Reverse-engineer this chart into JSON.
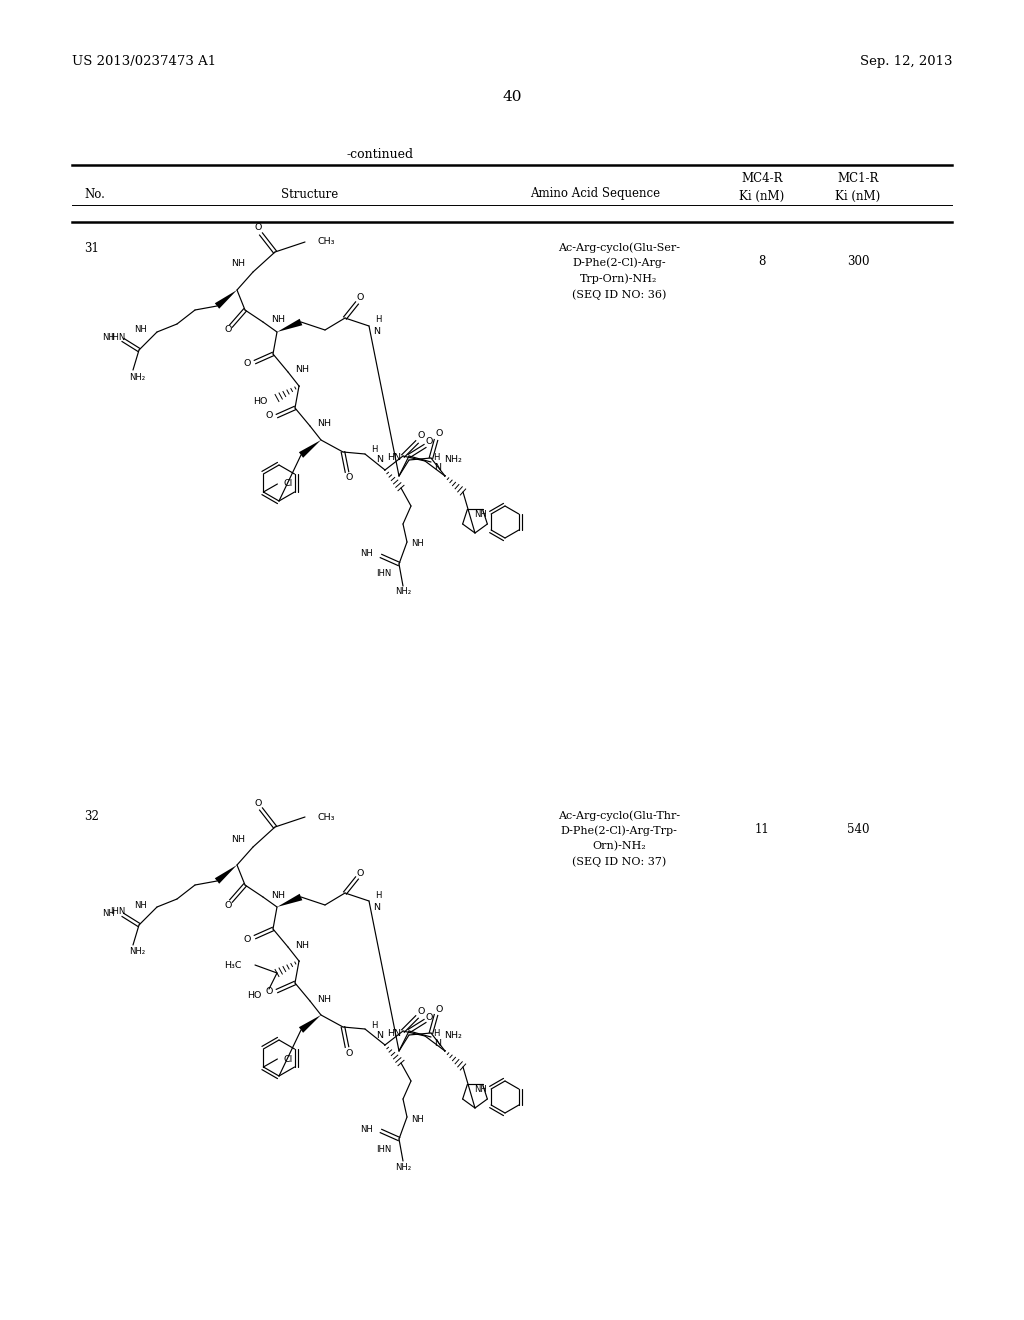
{
  "page_header_left": "US 2013/0237473 A1",
  "page_header_right": "Sep. 12, 2013",
  "page_number": "40",
  "continued_label": "-continued",
  "col_headers": {
    "no": "No.",
    "structure": "Structure",
    "amino": "Amino Acid Sequence",
    "mc4r_top": "MC4-R",
    "mc4r_bot": "Ki (nM)",
    "mc1r_top": "MC1-R",
    "mc1r_bot": "Ki (nM)"
  },
  "row31": {
    "no": "31",
    "seq": "Ac-Arg-cyclo(Glu-Ser-\nD-Phe(2-Cl)-Arg-\nTrp-Orn)-NH₂\n(SEQ ID NO: 36)",
    "mc4r": "8",
    "mc1r": "300"
  },
  "row32": {
    "no": "32",
    "seq": "Ac-Arg-cyclo(Glu-Thr-\nD-Phe(2-Cl)-Arg-Trp-\nOrn)-NH₂\n(SEQ ID NO: 37)",
    "mc4r": "11",
    "mc1r": "540"
  },
  "bg": "#ffffff",
  "fg": "#000000"
}
